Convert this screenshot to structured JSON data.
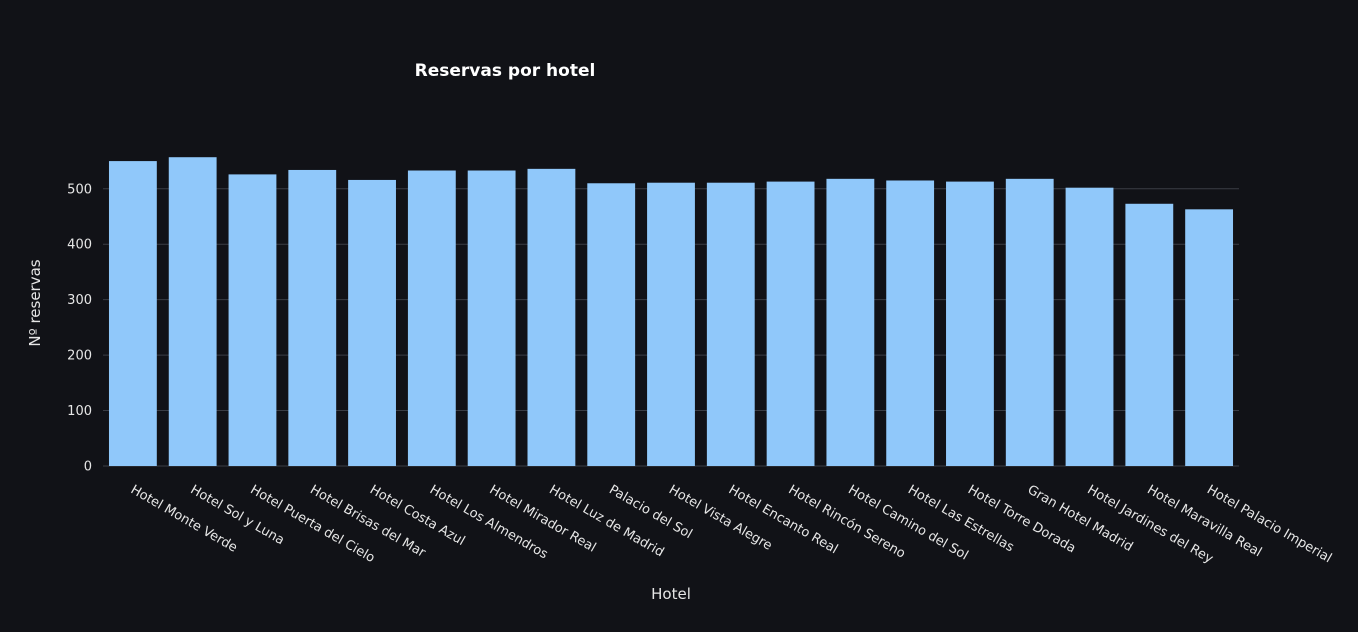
{
  "chart_data": {
    "type": "bar",
    "title": "Reservas por hotel",
    "xlabel": "Hotel",
    "ylabel": "Nº reservas",
    "ylim": [
      0,
      570
    ],
    "yticks": [
      0,
      100,
      200,
      300,
      400,
      500
    ],
    "grid": true,
    "bar_color": "#90c8fa",
    "categories": [
      "Hotel Monte Verde",
      "Hotel Sol y Luna",
      "Hotel Puerta del Cielo",
      "Hotel Brisas del Mar",
      "Hotel Costa Azul",
      "Hotel Los Almendros",
      "Hotel Mirador Real",
      "Hotel Luz de Madrid",
      "Palacio del Sol",
      "Hotel Vista Alegre",
      "Hotel Encanto Real",
      "Hotel Rincón Sereno",
      "Hotel Camino del Sol",
      "Hotel Las Estrellas",
      "Hotel Torre Dorada",
      "Gran Hotel Madrid",
      "Hotel Jardines del Rey",
      "Hotel Maravilla Real",
      "Hotel Palacio Imperial"
    ],
    "values": [
      550,
      557,
      526,
      534,
      516,
      533,
      533,
      536,
      510,
      511,
      511,
      513,
      518,
      515,
      513,
      518,
      502,
      473,
      463
    ]
  }
}
